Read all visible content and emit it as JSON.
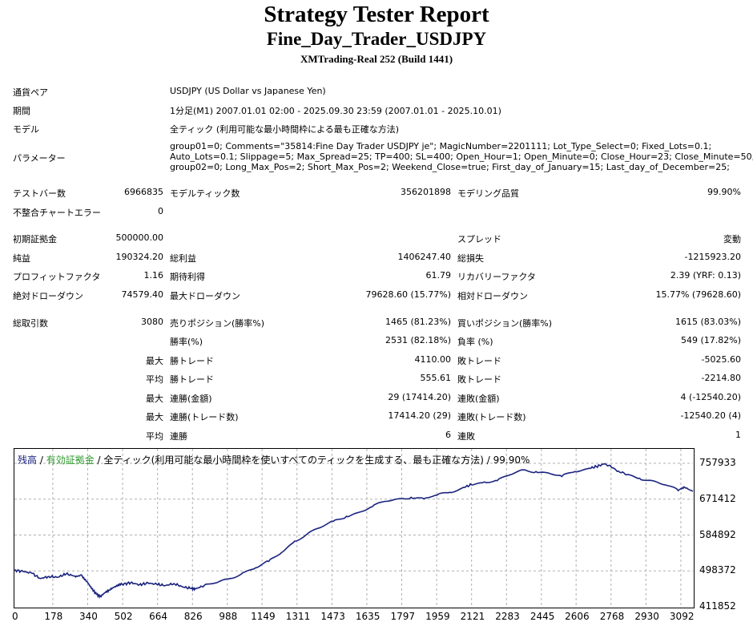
{
  "header": {
    "title": "Strategy Tester Report",
    "ea_name": "Fine_Day_Trader_USDJPY",
    "server": "XMTrading-Real 252 (Build 1441)"
  },
  "info": {
    "symbol_label": "通貨ペア",
    "symbol_value": "USDJPY (US Dollar vs Japanese Yen)",
    "period_label": "期間",
    "period_value": "1分足(M1) 2007.01.01 02:00 - 2025.09.30 23:59 (2007.01.01 - 2025.10.01)",
    "model_label": "モデル",
    "model_value": "全ティック (利用可能な最小時間枠による最も正確な方法)",
    "params_label": "パラメーター",
    "params_lines": [
      "group01=0; Comments=\"35814:Fine Day Trader USDJPY je\"; MagicNumber=2201111; Lot_Type_Select=0; Fixed_Lots=0.1;",
      "Auto_Lots=0.1; Slippage=5; Max_Spread=25; TP=400; SL=400; Open_Hour=1; Open_Minute=0; Close_Hour=23; Close_Minute=50;",
      "group02=0; Long_Max_Pos=2; Short_Max_Pos=2; Weekend_Close=true; First_day_of_January=15; Last_day_of_December=25;"
    ]
  },
  "stats": {
    "bars_label": "テストバー数",
    "bars_value": "6966835",
    "ticks_label": "モデルティック数",
    "ticks_value": "356201898",
    "quality_label": "モデリング品質",
    "quality_value": "99.90%",
    "mismatch_label": "不整合チャートエラー",
    "mismatch_value": "0",
    "deposit_label": "初期証拠金",
    "deposit_value": "500000.00",
    "spread_label": "スプレッド",
    "spread_value": "変動",
    "net_label": "純益",
    "net_value": "190324.20",
    "gross_profit_label": "総利益",
    "gross_profit_value": "1406247.40",
    "gross_loss_label": "総損失",
    "gross_loss_value": "-1215923.20",
    "pf_label": "プロフィットファクタ",
    "pf_value": "1.16",
    "expected_label": "期待利得",
    "expected_value": "61.79",
    "recovery_label": "リカバリーファクタ",
    "recovery_value": "2.39 (YRF: 0.13)",
    "abs_dd_label": "絶対ドローダウン",
    "abs_dd_value": "74579.40",
    "max_dd_label": "最大ドローダウン",
    "max_dd_value": "79628.60 (15.77%)",
    "rel_dd_label": "相対ドローダウン",
    "rel_dd_value": "15.77% (79628.60)",
    "trades_label": "総取引数",
    "trades_value": "3080",
    "short_label": "売りポジション(勝率%)",
    "short_value": "1465 (81.23%)",
    "long_label": "買いポジション(勝率%)",
    "long_value": "1615 (83.03%)",
    "win_rate_label": "勝率(%)",
    "win_rate_value": "2531 (82.18%)",
    "loss_rate_label": "負率 (%)",
    "loss_rate_value": "549 (17.82%)",
    "max_label": "最大",
    "avg_label": "平均",
    "largest_win_label": "勝トレード",
    "largest_win_value": "4110.00",
    "largest_loss_label": "敗トレード",
    "largest_loss_value": "-5025.60",
    "avg_win_label": "勝トレード",
    "avg_win_value": "555.61",
    "avg_loss_label": "敗トレード",
    "avg_loss_value": "-2214.80",
    "max_consec_wins_money_label": "連勝(金額)",
    "max_consec_wins_money_value": "29 (17414.20)",
    "max_consec_losses_money_label": "連敗(金額)",
    "max_consec_losses_money_value": "4 (-12540.20)",
    "max_consec_wins_count_label": "連勝(トレード数)",
    "max_consec_wins_count_value": "17414.20 (29)",
    "max_consec_losses_count_label": "連敗(トレード数)",
    "max_consec_losses_count_value": "-12540.20 (4)",
    "avg_consec_wins_label": "連勝",
    "avg_consec_wins_value": "6",
    "avg_consec_losses_label": "連敗",
    "avg_consec_losses_value": "1"
  },
  "chart_legend": {
    "balance": "残高",
    "sep1": " / ",
    "equity": "有効証拠金",
    "rest": " / 全ティック(利用可能な最小時間枠を使いすべてのティックを生成する、最も正確な方法) / 99.90%",
    "balance_color": "#1a237e",
    "equity_color": "#2e9a2e"
  },
  "chart_data": {
    "type": "line",
    "y_ticks": [
      "757933",
      "671412",
      "584892",
      "498372",
      "411852"
    ],
    "x_ticks": [
      "0",
      "178",
      "340",
      "502",
      "664",
      "826",
      "988",
      "1149",
      "1311",
      "1473",
      "1635",
      "1797",
      "1959",
      "2121",
      "2283",
      "2445",
      "2606",
      "2768",
      "2930",
      "3092"
    ],
    "ylim": [
      411852,
      757933
    ],
    "xlim": [
      0,
      3148
    ],
    "line_color": "#1a237e",
    "grid": true,
    "series": [
      {
        "x": [
          0,
          40,
          80,
          120,
          160,
          200,
          240,
          280,
          310,
          340,
          360,
          380,
          400,
          420,
          440,
          470,
          500,
          540,
          580,
          620,
          660,
          700,
          740,
          780,
          820,
          840,
          880,
          940,
          1000,
          1060,
          1120,
          1180,
          1240,
          1300,
          1360,
          1420,
          1480,
          1540,
          1600,
          1660,
          1720,
          1780,
          1840,
          1900,
          1960,
          2020,
          2080,
          2120,
          2180,
          2240,
          2300,
          2360,
          2420,
          2480,
          2540,
          2600,
          2660,
          2700,
          2740,
          2790,
          2840,
          2900,
          2960,
          3020,
          3080,
          3110,
          3148
        ],
        "y": [
          500000,
          497000,
          493000,
          480000,
          485000,
          483000,
          491000,
          486000,
          489000,
          470000,
          455000,
          442000,
          437000,
          446000,
          452000,
          460000,
          466000,
          470000,
          465000,
          469000,
          466000,
          463000,
          468000,
          460000,
          456000,
          455000,
          463000,
          470000,
          480000,
          494000,
          506000,
          521000,
          543000,
          570000,
          588000,
          603000,
          618000,
          630000,
          640000,
          653000,
          666000,
          672000,
          676000,
          672000,
          681000,
          688000,
          699000,
          706000,
          713000,
          716000,
          730000,
          742000,
          738000,
          734000,
          726000,
          738000,
          745000,
          750000,
          757000,
          742000,
          730000,
          722000,
          716000,
          706000,
          692000,
          700000,
          690000
        ]
      }
    ]
  }
}
